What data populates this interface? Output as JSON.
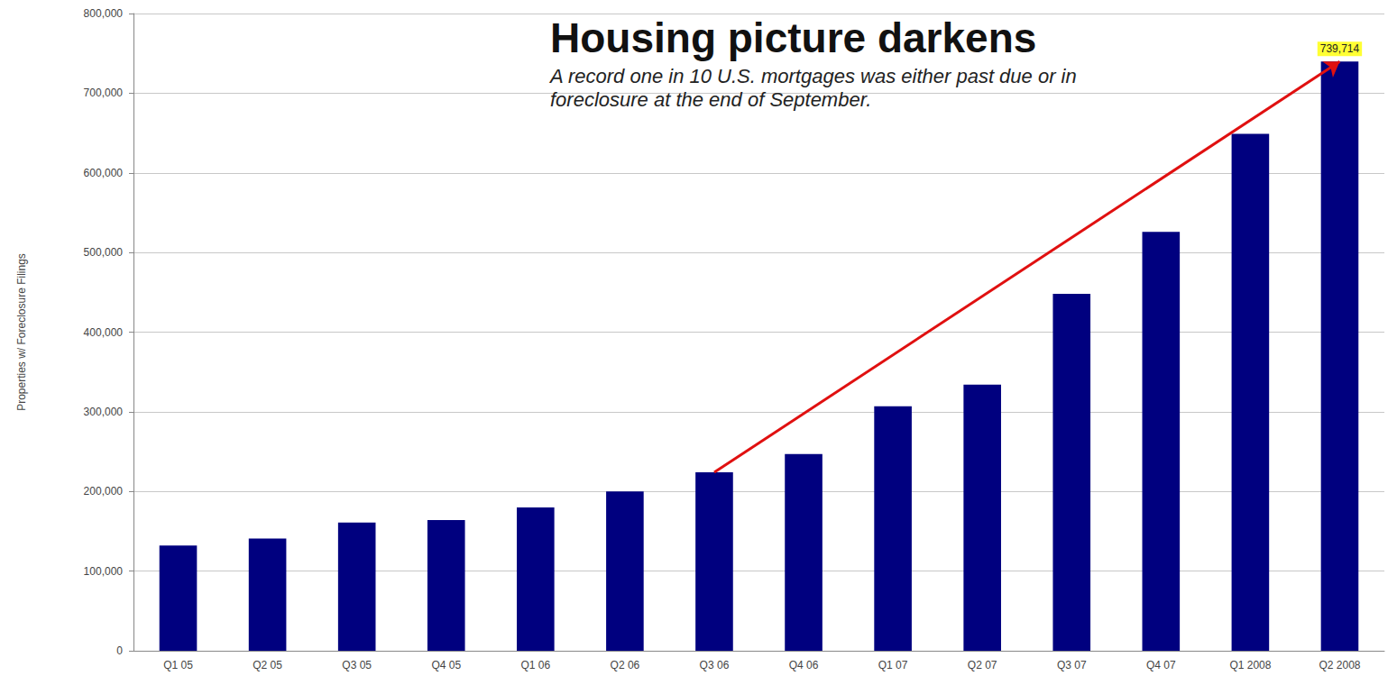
{
  "chart_data": {
    "type": "bar",
    "title": "Housing picture darkens",
    "subtitle": "A record one in 10 U.S. mortgages was either past due or in foreclosure at the end of September.",
    "y_label": "Properties w/ Foreclosure Filings",
    "categories": [
      "Q1 05",
      "Q2 05",
      "Q3 05",
      "Q4 05",
      "Q1 06",
      "Q2 06",
      "Q3 06",
      "Q4 06",
      "Q1 07",
      "Q2 07",
      "Q3 07",
      "Q4 07",
      "Q1 2008",
      "Q2 2008"
    ],
    "values": [
      132000,
      141000,
      161000,
      164000,
      180000,
      200000,
      224000,
      247000,
      307000,
      334000,
      448000,
      526000,
      649000,
      739714
    ],
    "color": "#00007f",
    "ylim": [
      0,
      800000
    ],
    "yticks": [
      0,
      {
        "value": 100000,
        "label": "100,000"
      },
      {
        "value": 200000,
        "label": "200,000"
      },
      {
        "value": 300000,
        "label": "300,000"
      },
      {
        "value": 400000,
        "label": "400,000"
      },
      {
        "value": 500000,
        "label": "500,000"
      },
      {
        "value": 600000,
        "label": "600,000"
      },
      {
        "value": 700000,
        "label": "700,000"
      },
      {
        "value": 800000,
        "label": "800,000"
      }
    ],
    "grid": true,
    "annotations": [
      {
        "category": "Q2 2008",
        "value": 739714,
        "label": "739,714"
      }
    ]
  }
}
